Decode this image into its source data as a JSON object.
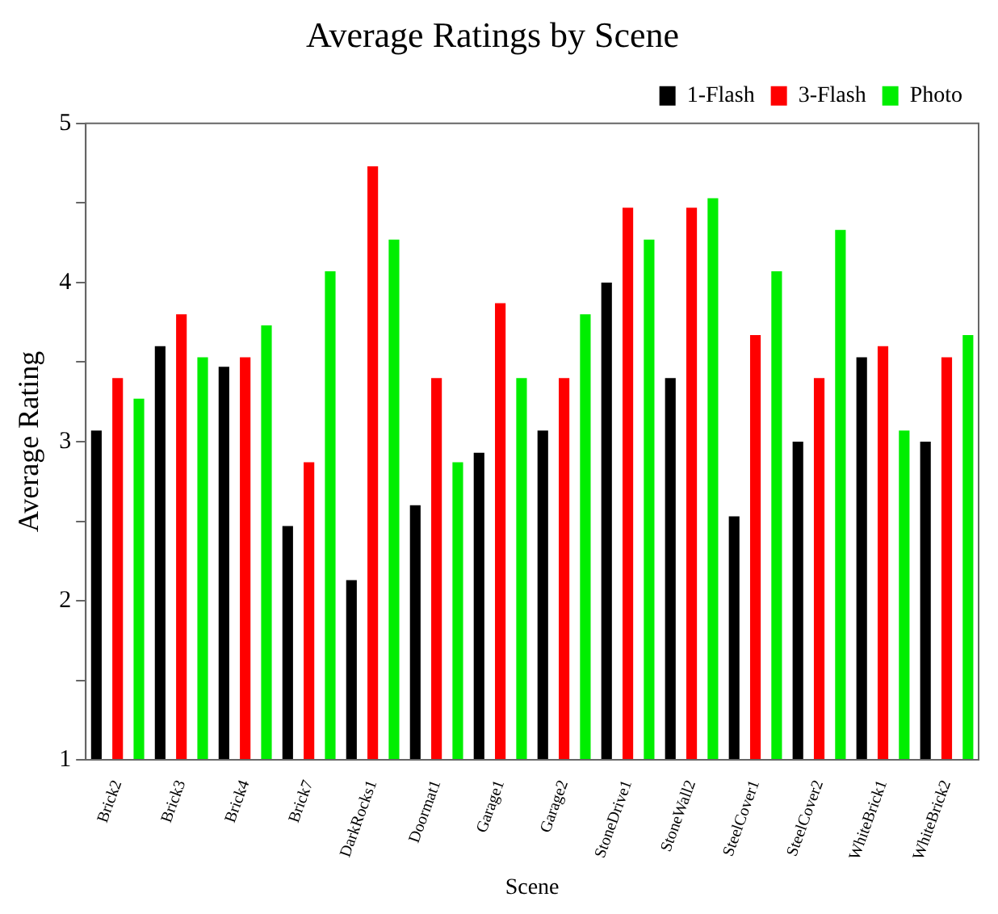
{
  "chart_data": {
    "type": "bar",
    "title": "Average Ratings by Scene",
    "xlabel": "Scene",
    "ylabel": "Average Rating",
    "categories": [
      "Brick2",
      "Brick3",
      "Brick4",
      "Brick7",
      "DarkRocks1",
      "Doormat1",
      "Garage1",
      "Garage2",
      "StoneDrive1",
      "StoneWall2",
      "SteelCover1",
      "SteelCover2",
      "WhiteBrick1",
      "WhiteBrick2"
    ],
    "series": [
      {
        "name": "1-Flash",
        "color": "#000000",
        "values": [
          3.07,
          3.6,
          3.47,
          2.47,
          2.13,
          2.6,
          2.93,
          3.07,
          4.0,
          3.4,
          2.53,
          3.0,
          3.53,
          3.0
        ]
      },
      {
        "name": "3-Flash",
        "color": "#ff0000",
        "values": [
          3.4,
          3.8,
          3.53,
          2.87,
          4.73,
          3.4,
          3.87,
          3.4,
          4.47,
          4.47,
          3.67,
          3.4,
          3.6,
          3.53
        ]
      },
      {
        "name": "Photo",
        "color": "#00ee00",
        "values": [
          3.27,
          3.53,
          3.73,
          4.07,
          4.27,
          2.87,
          3.4,
          3.8,
          4.27,
          4.53,
          4.07,
          4.33,
          3.07,
          3.67
        ]
      }
    ],
    "ylim": [
      1,
      5
    ],
    "yticks": [
      1,
      {
        "value": 1.5,
        "label": null
      },
      2,
      {
        "value": 2.5,
        "label": null
      },
      3,
      {
        "value": 3.5,
        "label": null
      },
      4,
      {
        "value": 4.5,
        "label": null
      },
      5
    ],
    "grid": false,
    "legend": "top right"
  }
}
